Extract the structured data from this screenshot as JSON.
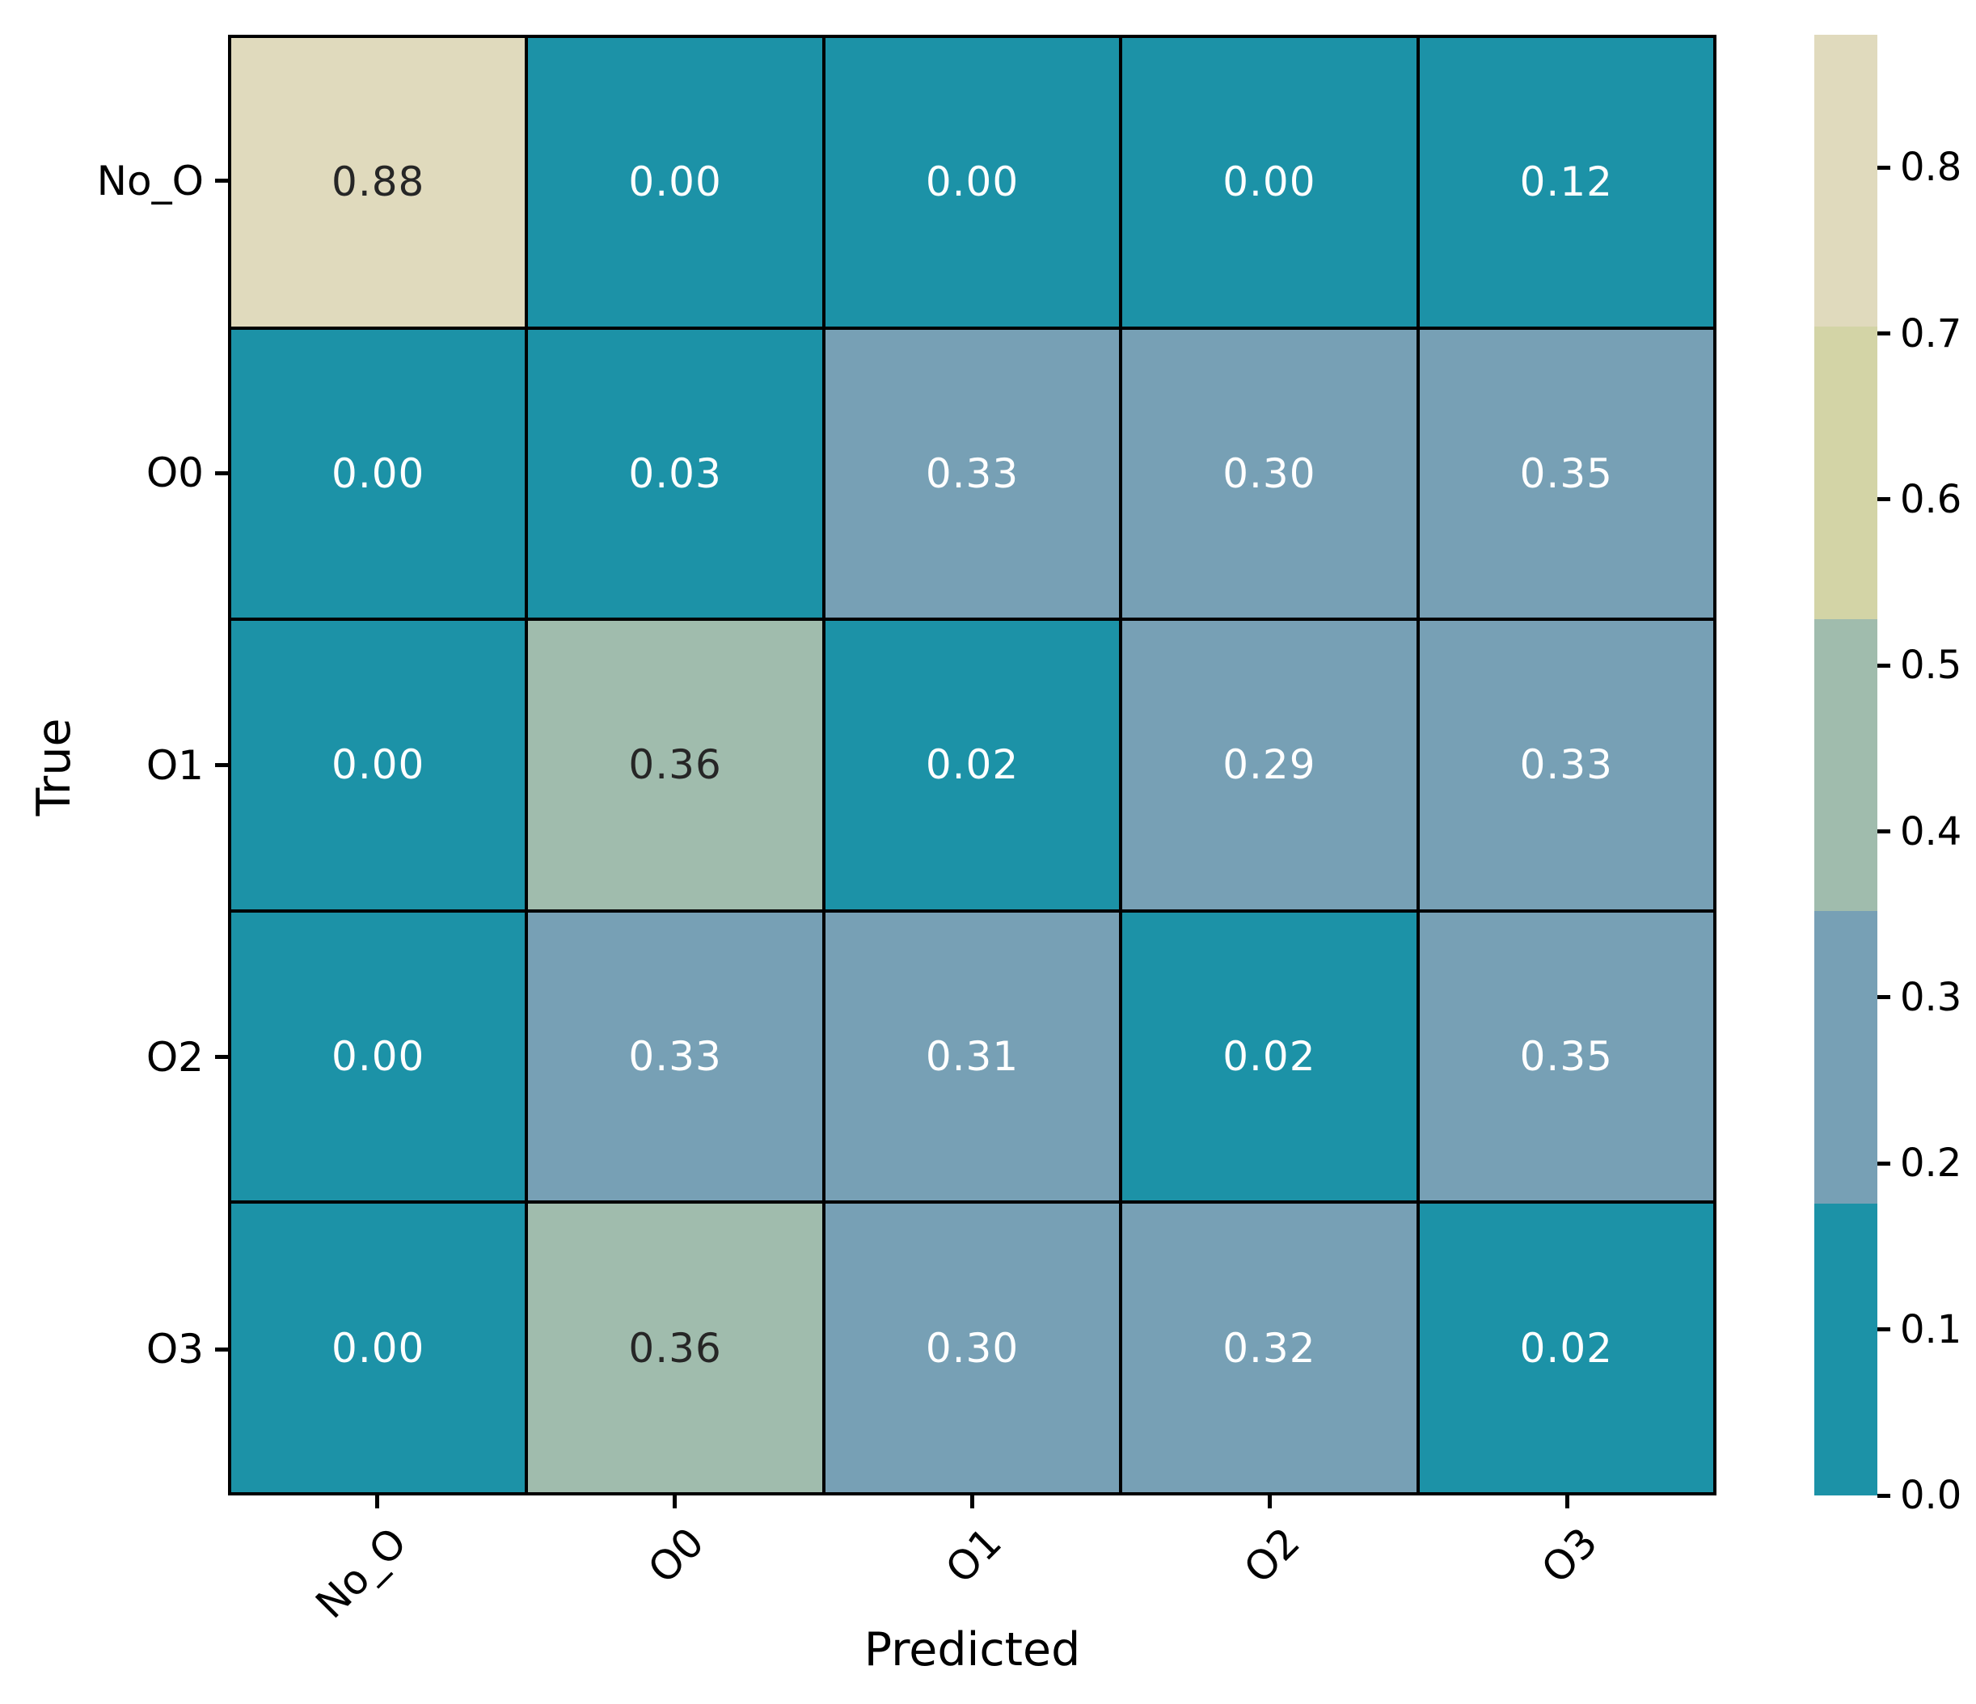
{
  "figure": {
    "xlabel": "Predicted",
    "ylabel": "True"
  },
  "chart_data": {
    "type": "heatmap",
    "title": "",
    "xlabel": "Predicted",
    "ylabel": "True",
    "x_categories": [
      "No_O",
      "O0",
      "O1",
      "O2",
      "O3"
    ],
    "y_categories": [
      "No_O",
      "O0",
      "O1",
      "O2",
      "O3"
    ],
    "values": [
      [
        0.88,
        0.0,
        0.0,
        0.0,
        0.12
      ],
      [
        0.0,
        0.03,
        0.33,
        0.3,
        0.35
      ],
      [
        0.0,
        0.36,
        0.02,
        0.29,
        0.33
      ],
      [
        0.0,
        0.33,
        0.31,
        0.02,
        0.35
      ],
      [
        0.0,
        0.36,
        0.3,
        0.32,
        0.02
      ]
    ],
    "values_text": [
      [
        "0.88",
        "0.00",
        "0.00",
        "0.00",
        "0.12"
      ],
      [
        "0.00",
        "0.03",
        "0.33",
        "0.30",
        "0.35"
      ],
      [
        "0.00",
        "0.36",
        "0.02",
        "0.29",
        "0.33"
      ],
      [
        "0.00",
        "0.33",
        "0.31",
        "0.02",
        "0.35"
      ],
      [
        "0.00",
        "0.36",
        "0.30",
        "0.32",
        "0.02"
      ]
    ],
    "vmin": 0.0,
    "vmax": 0.88,
    "n_color_bands": 5,
    "palette": [
      "#1c92a7",
      "#77a0b5",
      "#a0bcad",
      "#d3d4a6",
      "#e0dabd"
    ],
    "annot_color_dark": "#262626",
    "annot_color_light": "#ffffff",
    "grid_color": "#000000",
    "grid_on": false,
    "colorbar": {
      "position": "right",
      "tick_labels": [
        "0.0",
        "0.1",
        "0.2",
        "0.3",
        "0.4",
        "0.5",
        "0.6",
        "0.7",
        "0.8"
      ],
      "tick_values": [
        0.0,
        0.1,
        0.2,
        0.3,
        0.4,
        0.5,
        0.6,
        0.7,
        0.8
      ]
    }
  }
}
